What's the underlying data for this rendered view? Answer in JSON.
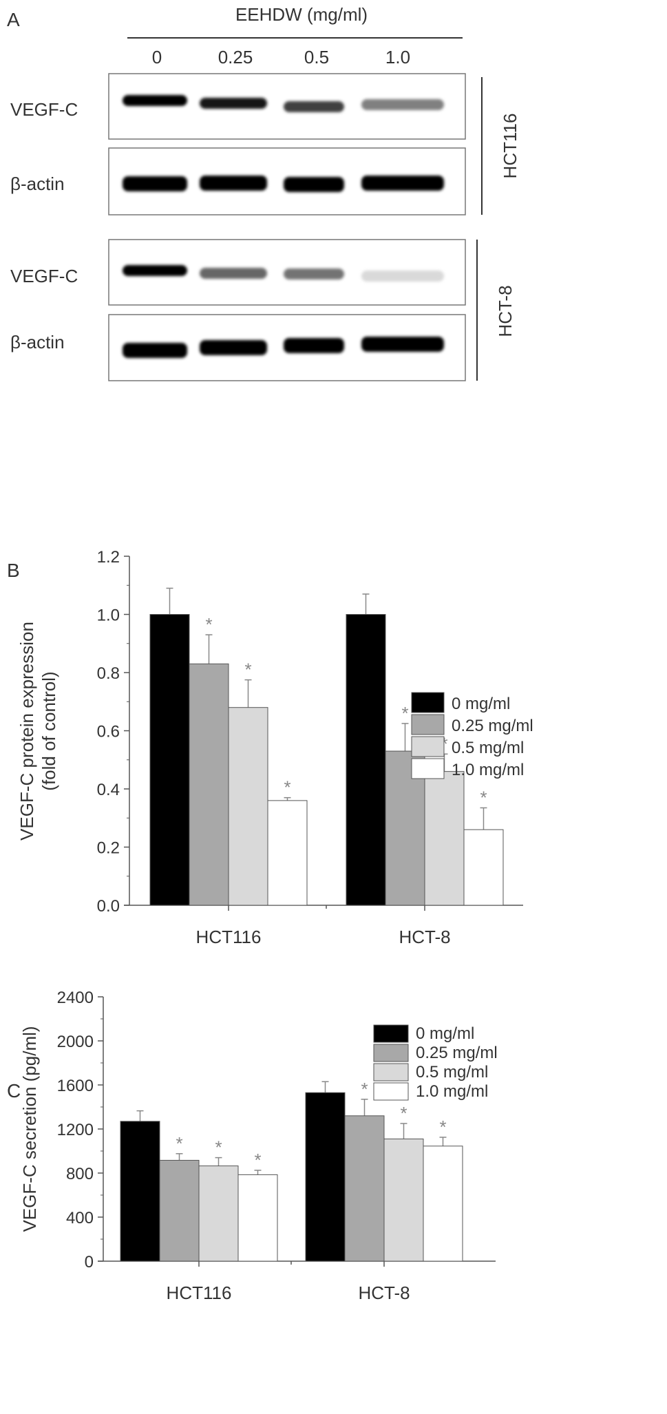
{
  "panel_a": {
    "panel_label": "A",
    "treatment_title": "EEHDW (mg/ml)",
    "doses": [
      "0",
      "0.25",
      "0.5",
      "1.0"
    ],
    "cell_lines": [
      {
        "name": "HCT116",
        "blots": [
          {
            "label": "VEGF-C",
            "band_intensity": [
              1.0,
              0.9,
              0.75,
              0.5
            ]
          },
          {
            "label": "β-actin",
            "band_intensity": [
              1.0,
              1.0,
              1.0,
              1.0
            ]
          }
        ]
      },
      {
        "name": "HCT-8",
        "blots": [
          {
            "label": "VEGF-C",
            "band_intensity": [
              1.0,
              0.6,
              0.55,
              0.15
            ]
          },
          {
            "label": "β-actin",
            "band_intensity": [
              1.0,
              1.0,
              1.0,
              1.0
            ]
          }
        ]
      }
    ]
  },
  "legend": [
    {
      "label": "0 mg/ml",
      "color": "#000000"
    },
    {
      "label": "0.25 mg/ml",
      "color": "#a8a8a8"
    },
    {
      "label": "0.5 mg/ml",
      "color": "#d9d9d9"
    },
    {
      "label": "1.0 mg/ml",
      "color": "#ffffff"
    }
  ],
  "chart_data": [
    {
      "panel_label": "B",
      "type": "bar",
      "categories": [
        "HCT116",
        "HCT-8"
      ],
      "ylabel": "VEGF-C protein expression",
      "ylabel2": "(fold of control)",
      "ylim": [
        0,
        1.2
      ],
      "yticks": [
        "0.0",
        "0.2",
        "0.4",
        "0.6",
        "0.8",
        "1.0",
        "1.2"
      ],
      "ytick_values": [
        0,
        0.2,
        0.4,
        0.6,
        0.8,
        1.0,
        1.2
      ],
      "legend_position": "top-right",
      "significance_marker": "*",
      "series": [
        {
          "name": "0 mg/ml",
          "values": [
            1.0,
            1.0
          ],
          "errors": [
            0.09,
            0.07
          ],
          "significant": [
            false,
            false
          ]
        },
        {
          "name": "0.25 mg/ml",
          "values": [
            0.83,
            0.53
          ],
          "errors": [
            0.1,
            0.095
          ],
          "significant": [
            true,
            true
          ]
        },
        {
          "name": "0.5 mg/ml",
          "values": [
            0.68,
            0.46
          ],
          "errors": [
            0.095,
            0.06
          ],
          "significant": [
            true,
            true
          ]
        },
        {
          "name": "1.0 mg/ml",
          "values": [
            0.36,
            0.26
          ],
          "errors": [
            0.01,
            0.075
          ],
          "significant": [
            true,
            true
          ]
        }
      ]
    },
    {
      "panel_label": "C",
      "type": "bar",
      "categories": [
        "HCT116",
        "HCT-8"
      ],
      "ylabel": "VEGF-C secretion (pg/ml)",
      "ylim": [
        0,
        2400
      ],
      "yticks": [
        "0",
        "400",
        "800",
        "1200",
        "1600",
        "2000",
        "2400"
      ],
      "ytick_values": [
        0,
        400,
        800,
        1200,
        1600,
        2000,
        2400
      ],
      "legend_position": "top-right",
      "significance_marker": "*",
      "series": [
        {
          "name": "0 mg/ml",
          "values": [
            1270,
            1530
          ],
          "errors": [
            95,
            100
          ],
          "significant": [
            false,
            false
          ]
        },
        {
          "name": "0.25 mg/ml",
          "values": [
            916,
            1320
          ],
          "errors": [
            60,
            150
          ],
          "significant": [
            true,
            true
          ]
        },
        {
          "name": "0.5 mg/ml",
          "values": [
            865,
            1110
          ],
          "errors": [
            75,
            140
          ],
          "significant": [
            true,
            true
          ]
        },
        {
          "name": "1.0 mg/ml",
          "values": [
            785,
            1045
          ],
          "errors": [
            40,
            80
          ],
          "significant": [
            true,
            true
          ]
        }
      ]
    }
  ]
}
